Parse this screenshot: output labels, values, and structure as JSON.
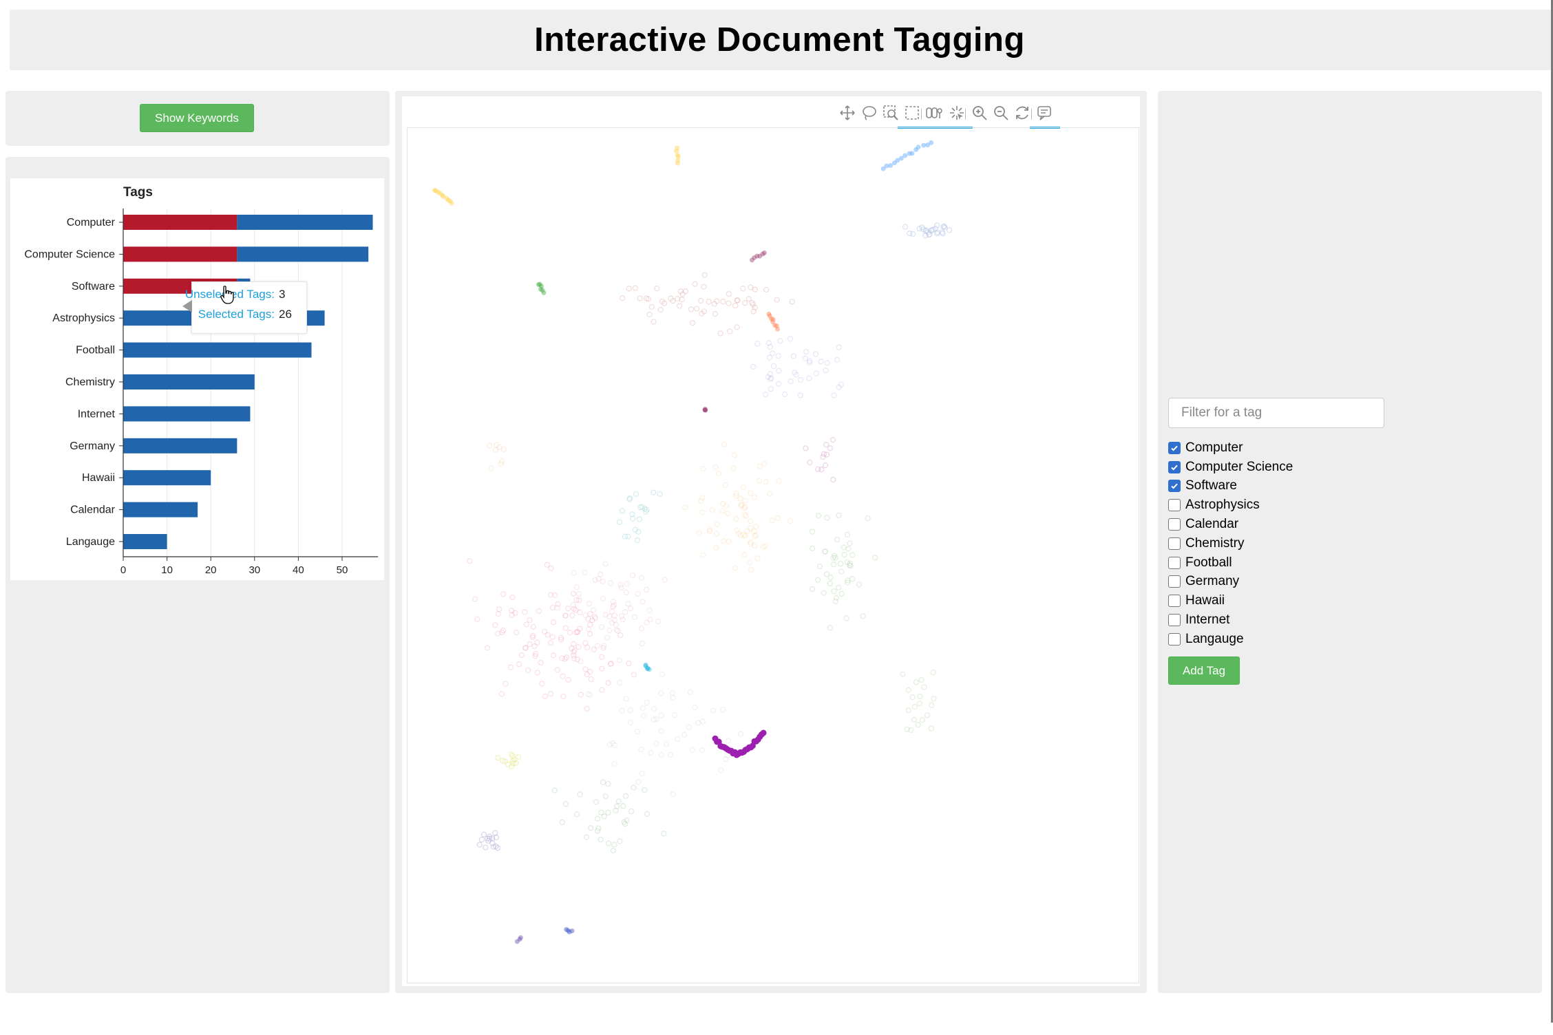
{
  "header": {
    "title": "Interactive Document Tagging"
  },
  "keywords_button": {
    "label": "Show Keywords"
  },
  "tag_chart": {
    "tooltip": {
      "unselected_label": "Unselected Tags:",
      "unselected_value": "3",
      "selected_label": "Selected Tags:",
      "selected_value": "26"
    },
    "chart_data": {
      "type": "bar",
      "orientation": "horizontal",
      "stacked": true,
      "title": "Tags",
      "xlabel": "",
      "ylabel": "",
      "categories": [
        "Computer",
        "Computer Science",
        "Software",
        "Astrophysics",
        "Football",
        "Chemistry",
        "Internet",
        "Germany",
        "Hawaii",
        "Calendar",
        "Langauge"
      ],
      "series": [
        {
          "color": "#b5192c",
          "values": [
            26,
            26,
            26,
            0,
            0,
            0,
            0,
            0,
            0,
            0,
            0
          ]
        },
        {
          "color": "#2166ac",
          "values": [
            31,
            30,
            3,
            46,
            43,
            30,
            29,
            26,
            20,
            17,
            10
          ]
        }
      ],
      "xticks": [
        0,
        10,
        20,
        30,
        40,
        50
      ],
      "xlim": [
        0,
        60
      ],
      "grid": "vertical",
      "legend": "none"
    }
  },
  "map": {
    "toolbar": [
      {
        "name": "pan-tool-icon",
        "active": false
      },
      {
        "name": "lasso-select-icon",
        "active": false
      },
      {
        "name": "box-zoom-icon",
        "active": false
      },
      {
        "name": "box-select-icon",
        "active": true
      },
      {
        "name": "poly-select-icon",
        "active": true
      },
      {
        "name": "tap-select-icon",
        "active": true
      },
      {
        "name": "zoom-in-icon",
        "active": false
      },
      {
        "name": "zoom-out-icon",
        "active": false
      },
      {
        "name": "reset-icon",
        "active": false
      },
      {
        "name": "hover-tooltip-icon",
        "active": true
      }
    ]
  },
  "filter": {
    "placeholder": "Filter for a tag",
    "tags": [
      {
        "label": "Computer",
        "checked": true
      },
      {
        "label": "Computer Science",
        "checked": true
      },
      {
        "label": "Software",
        "checked": true
      },
      {
        "label": "Astrophysics",
        "checked": false
      },
      {
        "label": "Calendar",
        "checked": false
      },
      {
        "label": "Chemistry",
        "checked": false
      },
      {
        "label": "Football",
        "checked": false
      },
      {
        "label": "Germany",
        "checked": false
      },
      {
        "label": "Hawaii",
        "checked": false
      },
      {
        "label": "Internet",
        "checked": false
      },
      {
        "label": "Langauge",
        "checked": false
      }
    ],
    "add_label": "Add Tag"
  }
}
